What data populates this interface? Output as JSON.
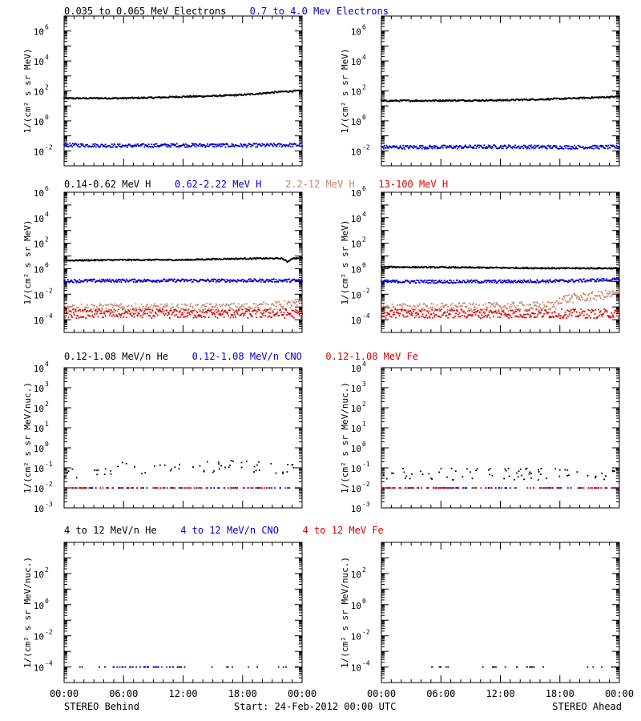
{
  "chart_data": [
    {
      "type": "scatter",
      "row": 1,
      "side": "behind",
      "ylabel": "1/(cm² s sr MeV)",
      "log_y": true,
      "ylim_exp": [
        -3,
        7
      ],
      "yticks": [
        {
          "label": "10",
          "exp": "-2"
        },
        {
          "label": "10",
          "exp": "0"
        },
        {
          "label": "10",
          "exp": "2"
        },
        {
          "label": "10",
          "exp": "4"
        },
        {
          "label": "10",
          "exp": "6"
        }
      ],
      "legend": [
        {
          "text": "0.035 to 0.065 MeV Electrons",
          "color": "#000000"
        },
        {
          "text": "0.7 to 4.0 Mev Electrons",
          "color": "#0000cc"
        }
      ],
      "series": [
        {
          "name": "0.035 to 0.065 MeV Electrons",
          "color": "#000000",
          "x_hours": [
            0,
            3,
            6,
            9,
            12,
            15,
            18,
            20,
            22,
            24
          ],
          "y": [
            32,
            33,
            33,
            36,
            42,
            46,
            55,
            70,
            90,
            105
          ]
        },
        {
          "name": "0.7 to 4.0 Mev Electrons",
          "color": "#0000cc",
          "x_hours": [
            0,
            6,
            12,
            18,
            24
          ],
          "y": [
            0.025,
            0.022,
            0.024,
            0.023,
            0.025
          ]
        }
      ]
    },
    {
      "type": "scatter",
      "row": 1,
      "side": "ahead",
      "ylabel": "1/(cm² s sr MeV)",
      "log_y": true,
      "ylim_exp": [
        -3,
        7
      ],
      "yticks": [
        {
          "label": "10",
          "exp": "-2"
        },
        {
          "label": "10",
          "exp": "0"
        },
        {
          "label": "10",
          "exp": "2"
        },
        {
          "label": "10",
          "exp": "4"
        },
        {
          "label": "10",
          "exp": "6"
        }
      ],
      "series": [
        {
          "name": "0.035 to 0.065 MeV Electrons",
          "color": "#000000",
          "x_hours": [
            0,
            6,
            12,
            18,
            24
          ],
          "y": [
            22,
            23,
            24,
            30,
            42
          ]
        },
        {
          "name": "0.7 to 4.0 Mev Electrons",
          "color": "#0000cc",
          "x_hours": [
            0,
            6,
            12,
            18,
            24
          ],
          "y": [
            0.018,
            0.018,
            0.019,
            0.018,
            0.018
          ]
        }
      ]
    },
    {
      "type": "scatter",
      "row": 2,
      "side": "behind",
      "ylabel": "1/(cm² s sr MeV)",
      "log_y": true,
      "ylim_exp": [
        -5,
        6
      ],
      "yticks": [
        {
          "label": "10",
          "exp": "-4"
        },
        {
          "label": "10",
          "exp": "-2"
        },
        {
          "label": "10",
          "exp": "0"
        },
        {
          "label": "10",
          "exp": "2"
        },
        {
          "label": "10",
          "exp": "4"
        },
        {
          "label": "10",
          "exp": "6"
        }
      ],
      "legend": [
        {
          "text": "0.14-0.62 MeV H",
          "color": "#000000"
        },
        {
          "text": "0.62-2.22 MeV H",
          "color": "#0000cc"
        },
        {
          "text": "2.2-12 MeV H",
          "color": "#c8826e"
        },
        {
          "text": "13-100 MeV H",
          "color": "#e00000"
        }
      ],
      "series": [
        {
          "name": "0.14-0.62 MeV H",
          "color": "#000000",
          "x_hours": [
            0,
            6,
            12,
            16,
            20,
            22,
            22.5,
            23,
            24
          ],
          "y": [
            4.5,
            5,
            5,
            6,
            6.5,
            6.5,
            3.5,
            6.5,
            7
          ]
        },
        {
          "name": "0.62-2.22 MeV H",
          "color": "#0000cc",
          "x_hours": [
            0,
            6,
            12,
            18,
            24
          ],
          "y": [
            0.11,
            0.12,
            0.12,
            0.12,
            0.12
          ]
        },
        {
          "name": "2.2-12 MeV H",
          "color": "#c8826e",
          "x_hours": [
            0,
            6,
            12,
            18,
            22,
            24
          ],
          "y": [
            0.0009,
            0.0008,
            0.0008,
            0.0009,
            0.0013,
            0.002
          ]
        },
        {
          "name": "13-100 MeV H",
          "color": "#e00000",
          "x_hours": [
            0,
            6,
            12,
            18,
            24
          ],
          "y": [
            0.0003,
            0.0003,
            0.0003,
            0.0003,
            0.0003
          ]
        }
      ]
    },
    {
      "type": "scatter",
      "row": 2,
      "side": "ahead",
      "ylabel": "1/(cm² s sr MeV)",
      "log_y": true,
      "ylim_exp": [
        -5,
        6
      ],
      "yticks": [
        {
          "label": "10",
          "exp": "-4"
        },
        {
          "label": "10",
          "exp": "-2"
        },
        {
          "label": "10",
          "exp": "0"
        },
        {
          "label": "10",
          "exp": "2"
        },
        {
          "label": "10",
          "exp": "4"
        },
        {
          "label": "10",
          "exp": "6"
        }
      ],
      "series": [
        {
          "name": "0.14-0.62 MeV H",
          "color": "#000000",
          "x_hours": [
            0,
            6,
            12,
            18,
            24
          ],
          "y": [
            1.4,
            1.3,
            1.2,
            1.1,
            1.1
          ]
        },
        {
          "name": "0.62-2.22 MeV H",
          "color": "#0000cc",
          "x_hours": [
            0,
            6,
            12,
            18,
            24
          ],
          "y": [
            0.1,
            0.1,
            0.1,
            0.11,
            0.14
          ]
        },
        {
          "name": "2.2-12 MeV H",
          "color": "#c8826e",
          "x_hours": [
            0,
            6,
            12,
            17.5,
            18,
            24
          ],
          "y": [
            0.0008,
            0.0009,
            0.001,
            0.0012,
            0.004,
            0.011
          ]
        },
        {
          "name": "13-100 MeV H",
          "color": "#e00000",
          "x_hours": [
            0,
            6,
            12,
            18,
            24
          ],
          "y": [
            0.0003,
            0.0003,
            0.0003,
            0.0003,
            0.0003
          ]
        }
      ]
    },
    {
      "type": "scatter",
      "row": 3,
      "side": "behind",
      "ylabel": "1/(cm² s sr MeV/nuc.)",
      "log_y": true,
      "ylim_exp": [
        -3,
        4
      ],
      "yticks": [
        {
          "label": "10",
          "exp": "-3"
        },
        {
          "label": "10",
          "exp": "-2"
        },
        {
          "label": "10",
          "exp": "-1"
        },
        {
          "label": "10",
          "exp": "0"
        },
        {
          "label": "10",
          "exp": "1"
        },
        {
          "label": "10",
          "exp": "2"
        },
        {
          "label": "10",
          "exp": "3"
        },
        {
          "label": "10",
          "exp": "4"
        }
      ],
      "legend": [
        {
          "text": "0.12-1.08 MeV/n He",
          "color": "#000000"
        },
        {
          "text": "0.12-1.08 MeV/n CNO",
          "color": "#0000cc"
        },
        {
          "text": "0.12-1.08 MeV Fe",
          "color": "#e00000"
        }
      ],
      "series": [
        {
          "name": "0.12-1.08 MeV/n He",
          "color": "#000000",
          "x_hours": [
            0,
            6,
            12,
            18,
            24
          ],
          "y": [
            0.05,
            0.1,
            0.1,
            0.12,
            0.1
          ]
        },
        {
          "name": "0.12-1.08 MeV/n CNO",
          "color": "#0000cc",
          "x_hours": [
            0,
            6,
            12,
            18,
            24
          ],
          "y": [
            0.01,
            0.01,
            0.01,
            0.01,
            0.01
          ]
        },
        {
          "name": "0.12-1.08 MeV Fe",
          "color": "#e00000",
          "x_hours": [
            0,
            6,
            12,
            18,
            24
          ],
          "y": [
            0.01,
            0.01,
            0.01,
            0.01,
            0.01
          ]
        }
      ]
    },
    {
      "type": "scatter",
      "row": 3,
      "side": "ahead",
      "ylabel": "1/(cm² s sr MeV/nuc.)",
      "log_y": true,
      "ylim_exp": [
        -3,
        4
      ],
      "yticks": [
        {
          "label": "10",
          "exp": "-3"
        },
        {
          "label": "10",
          "exp": "-2"
        },
        {
          "label": "10",
          "exp": "-1"
        },
        {
          "label": "10",
          "exp": "0"
        },
        {
          "label": "10",
          "exp": "1"
        },
        {
          "label": "10",
          "exp": "2"
        },
        {
          "label": "10",
          "exp": "3"
        },
        {
          "label": "10",
          "exp": "4"
        }
      ],
      "series": [
        {
          "name": "0.12-1.08 MeV/n He",
          "color": "#000000",
          "x_hours": [
            0,
            6,
            12,
            18,
            24
          ],
          "y": [
            0.05,
            0.05,
            0.05,
            0.05,
            0.05
          ]
        },
        {
          "name": "0.12-1.08 MeV/n CNO",
          "color": "#0000cc",
          "x_hours": [
            0,
            6,
            12,
            18,
            24
          ],
          "y": [
            0.01,
            0.01,
            0.01,
            0.01,
            0.01
          ]
        },
        {
          "name": "0.12-1.08 MeV Fe",
          "color": "#e00000",
          "x_hours": [
            0,
            6,
            12,
            18,
            24
          ],
          "y": [
            0.01,
            0.01,
            0.01,
            0.01,
            0.01
          ]
        }
      ]
    },
    {
      "type": "scatter",
      "row": 4,
      "side": "behind",
      "ylabel": "1/(cm² s sr MeV/nuc.)",
      "log_y": true,
      "ylim_exp": [
        -5,
        4
      ],
      "yticks": [
        {
          "label": "10",
          "exp": "-4"
        },
        {
          "label": "10",
          "exp": "-2"
        },
        {
          "label": "10",
          "exp": "0"
        },
        {
          "label": "10",
          "exp": "2"
        }
      ],
      "legend": [
        {
          "text": "4 to 12 MeV/n He",
          "color": "#000000"
        },
        {
          "text": "4 to 12 MeV/n CNO",
          "color": "#0000cc"
        },
        {
          "text": "4 to 12 MeV Fe",
          "color": "#e00000"
        }
      ],
      "series": [
        {
          "name": "4 to 12 MeV/n He",
          "color": "#000000",
          "x_hours": [
            0,
            6,
            12,
            18,
            24
          ],
          "y": [
            0.0001,
            0.0001,
            0.0001,
            0.0001,
            0.0001
          ]
        },
        {
          "name": "4 to 12 MeV/n CNO",
          "color": "#0000cc",
          "x_hours": [
            5,
            12
          ],
          "y": [
            0.0001,
            0.0001
          ]
        }
      ]
    },
    {
      "type": "scatter",
      "row": 4,
      "side": "ahead",
      "ylabel": "1/(cm² s sr MeV/nuc.)",
      "log_y": true,
      "ylim_exp": [
        -5,
        4
      ],
      "yticks": [
        {
          "label": "10",
          "exp": "-4"
        },
        {
          "label": "10",
          "exp": "-2"
        },
        {
          "label": "10",
          "exp": "0"
        },
        {
          "label": "10",
          "exp": "2"
        }
      ],
      "series": [
        {
          "name": "4 to 12 MeV/n He",
          "color": "#000000",
          "x_hours": [
            5,
            6,
            8,
            10,
            17,
            18,
            20,
            22,
            24
          ],
          "y": [
            0.0001,
            0.0001,
            0.0001,
            0.0001,
            0.0001,
            0.0001,
            0.0001,
            0.0001,
            0.0001
          ]
        }
      ]
    }
  ],
  "xaxis": {
    "ticks": [
      "00:00",
      "06:00",
      "12:00",
      "18:00",
      "00:00"
    ],
    "range_hours": [
      0,
      24
    ]
  },
  "footer": {
    "left": "STEREO Behind",
    "center": "Start: 24-Feb-2012 00:00 UTC",
    "right": "STEREO Ahead"
  }
}
